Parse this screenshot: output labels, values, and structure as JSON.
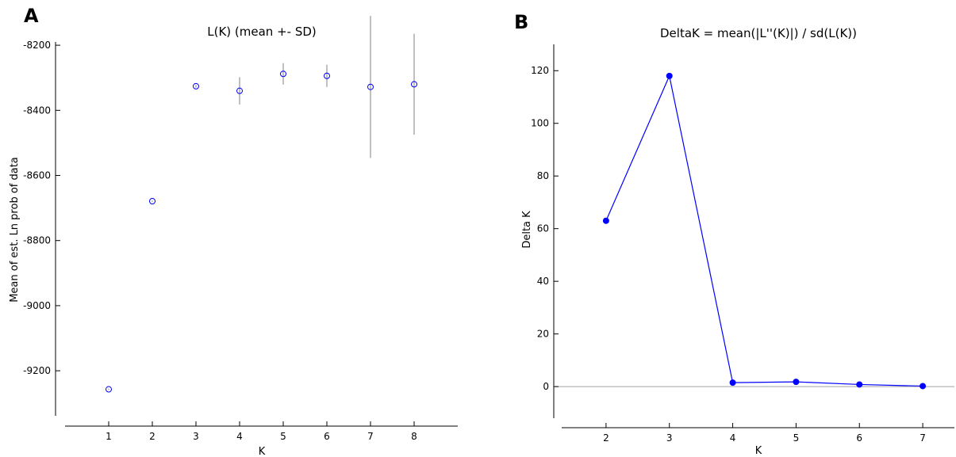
{
  "chart_data": [
    {
      "panel": "A",
      "type": "scatter",
      "title": "L(K) (mean +- SD)",
      "xlabel": "K",
      "ylabel": "Mean of est. Ln prob of data",
      "x": [
        1,
        2,
        3,
        4,
        5,
        6,
        7,
        8
      ],
      "series": [
        {
          "mean": [
            -9257,
            -8679,
            -8326,
            -8340,
            -8288,
            -8294,
            -8328,
            -8320
          ],
          "sd": [
            2,
            2,
            4,
            42,
            33,
            34,
            218,
            155
          ]
        }
      ],
      "xticks": [
        "1",
        "2",
        "3",
        "4",
        "5",
        "6",
        "7",
        "8"
      ],
      "yticks": [
        "-8200",
        "-8400",
        "-8600",
        "-8800",
        "-9000",
        "-9200"
      ],
      "xlim": [
        0,
        9
      ],
      "ylim": [
        -9370,
        -8190
      ],
      "grid": false,
      "marker_color": "#0000ff",
      "errorbar_color": "#808080"
    },
    {
      "panel": "B",
      "type": "line",
      "title": "DeltaK = mean(|L''(K)|) / sd(L(K))",
      "xlabel": "K",
      "ylabel": "Delta K",
      "x": [
        2,
        3,
        4,
        5,
        6,
        7
      ],
      "series": [
        {
          "values": [
            63,
            118,
            1.5,
            1.8,
            0.8,
            0.2
          ]
        }
      ],
      "xticks": [
        "2",
        "3",
        "4",
        "5",
        "6",
        "7"
      ],
      "yticks": [
        "0",
        "20",
        "40",
        "60",
        "80",
        "100",
        "120"
      ],
      "xlim": [
        1.3,
        7.5
      ],
      "ylim": [
        -12,
        130
      ],
      "grid": false,
      "line_color": "#0000ff",
      "zero_line_color": "#a0a0a0"
    }
  ]
}
